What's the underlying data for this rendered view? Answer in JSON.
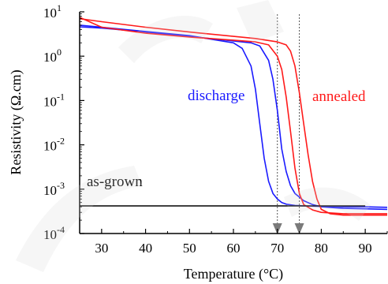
{
  "chart_data": {
    "type": "line",
    "xlabel": "Temperature (°C)",
    "ylabel": "Resistivity (Ω.cm)",
    "xlim": [
      25,
      95
    ],
    "ylim_log10": [
      -4,
      1
    ],
    "y_scale": "log",
    "grid": false,
    "x_ticks": [
      "30",
      "40",
      "50",
      "60",
      "70",
      "80",
      "90"
    ],
    "y_ticks": [
      {
        "base": "10",
        "exp": "1"
      },
      {
        "base": "10",
        "exp": "0"
      },
      {
        "base": "10",
        "exp": "-1"
      },
      {
        "base": "10",
        "exp": "-2"
      },
      {
        "base": "10",
        "exp": "-3"
      },
      {
        "base": "10",
        "exp": "-4"
      }
    ],
    "annotations": [
      {
        "text": "discharge",
        "color": "#1a1aff"
      },
      {
        "text": "annealed",
        "color": "#ff1a1a"
      },
      {
        "text": "as-grown",
        "color": "#000000"
      }
    ],
    "reference_lines": [
      70,
      75
    ],
    "series": [
      {
        "color": "#1a1aff",
        "x": [
          25,
          30,
          40,
          50,
          60,
          62,
          64,
          65,
          66,
          67,
          68,
          69,
          70,
          71,
          72,
          74,
          76,
          80,
          85,
          90,
          95
        ],
        "y": [
          5.0,
          4.5,
          3.6,
          2.9,
          2.0,
          1.5,
          0.6,
          0.18,
          0.03,
          0.005,
          0.0015,
          0.0008,
          0.0006,
          0.0005,
          0.00046,
          0.00043,
          0.00042,
          0.00041,
          0.0004,
          0.0004,
          0.00039
        ]
      },
      {
        "color": "#1a1aff",
        "x": [
          25,
          30,
          40,
          50,
          60,
          64,
          66,
          68,
          69,
          70,
          71,
          72,
          73,
          74,
          76,
          78,
          80,
          85,
          90,
          95
        ],
        "y": [
          4.6,
          4.3,
          3.5,
          2.8,
          2.2,
          2.0,
          1.7,
          0.8,
          0.3,
          0.06,
          0.008,
          0.0025,
          0.0012,
          0.0008,
          0.00055,
          0.00045,
          0.0004,
          0.00037,
          0.00036,
          0.00035
        ]
      },
      {
        "color": "#ff1a1a",
        "x": [
          25,
          30,
          40,
          50,
          60,
          65,
          68,
          70,
          71,
          72,
          73,
          74,
          75,
          76,
          78,
          80,
          85,
          90,
          95
        ],
        "y": [
          7.5,
          4.5,
          3.3,
          2.7,
          2.3,
          2.1,
          1.8,
          1.0,
          0.5,
          0.12,
          0.02,
          0.003,
          0.0008,
          0.00045,
          0.00034,
          0.0003,
          0.00028,
          0.00028,
          0.00028
        ]
      },
      {
        "color": "#ff1a1a",
        "x": [
          25,
          30,
          40,
          50,
          60,
          65,
          70,
          72,
          73,
          74,
          75,
          76,
          77,
          78,
          79,
          80,
          82,
          85,
          90,
          95
        ],
        "y": [
          7.0,
          6.0,
          4.5,
          3.5,
          2.8,
          2.5,
          2.1,
          1.8,
          1.3,
          0.6,
          0.15,
          0.03,
          0.006,
          0.0015,
          0.0006,
          0.00035,
          0.00028,
          0.00026,
          0.00026,
          0.00026
        ]
      },
      {
        "color": "#000000",
        "x": [
          25,
          90
        ],
        "y": [
          0.00042,
          0.00042
        ]
      }
    ]
  }
}
